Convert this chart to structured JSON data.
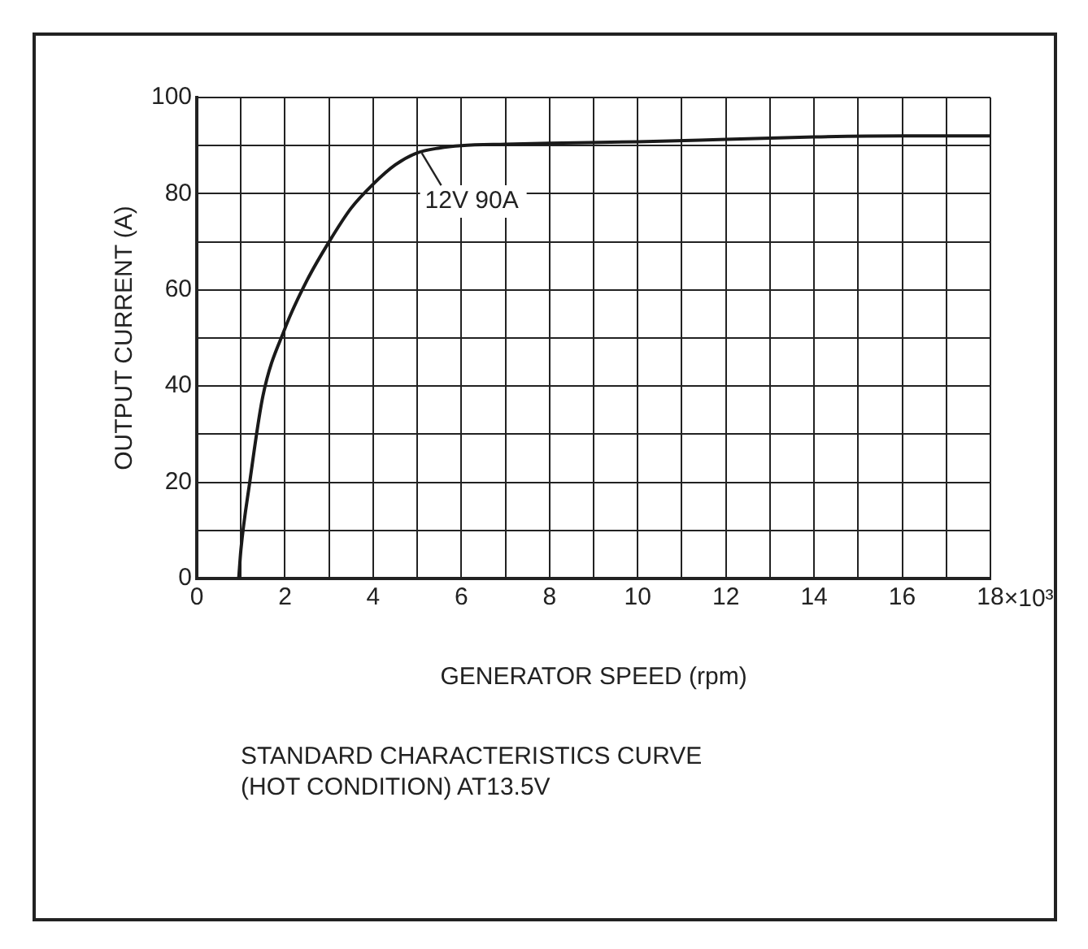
{
  "chart_data": {
    "type": "line",
    "title": "STANDARD CHARACTERISTICS CURVE\n(HOT CONDITION) AT13.5V",
    "xlabel": "GENERATOR SPEED (rpm)",
    "ylabel": "OUTPUT CURRENT (A)",
    "x": [
      0.95,
      1.0,
      1.2,
      1.5,
      2,
      2.5,
      3,
      3.5,
      4,
      4.5,
      5,
      5.5,
      6,
      7,
      8,
      10,
      12,
      14,
      16,
      18
    ],
    "series": [
      {
        "color": "#1a1a1a",
        "values": [
          0,
          6,
          20,
          38,
          52,
          62,
          70,
          77,
          82,
          86,
          88.5,
          89.5,
          90,
          90.3,
          90.5,
          90.8,
          91.3,
          91.8,
          92,
          92
        ]
      }
    ],
    "xlim": [
      0,
      18
    ],
    "ylim": [
      0,
      100
    ],
    "xticks": [
      0,
      {
        "value": 1,
        "label": null
      },
      2,
      {
        "value": 3,
        "label": null
      },
      4,
      {
        "value": 5,
        "label": null
      },
      6,
      {
        "value": 7,
        "label": null
      },
      8,
      {
        "value": 9,
        "label": null
      },
      10,
      {
        "value": 11,
        "label": null
      },
      12,
      {
        "value": 13,
        "label": null
      },
      14,
      {
        "value": 15,
        "label": null
      },
      16,
      {
        "value": 17,
        "label": null
      },
      18
    ],
    "yticks": [
      0,
      {
        "value": 10,
        "label": null
      },
      20,
      {
        "value": 30,
        "label": null
      },
      40,
      {
        "value": 50,
        "label": null
      },
      60,
      {
        "value": 70,
        "label": null
      },
      80,
      {
        "value": 90,
        "label": null
      },
      100
    ],
    "grid": true,
    "marker": "none",
    "line_style": "solid",
    "annotations": [
      {
        "text": "12V 90A",
        "x": 5.1,
        "y": 88.5
      },
      "×10³"
    ]
  }
}
